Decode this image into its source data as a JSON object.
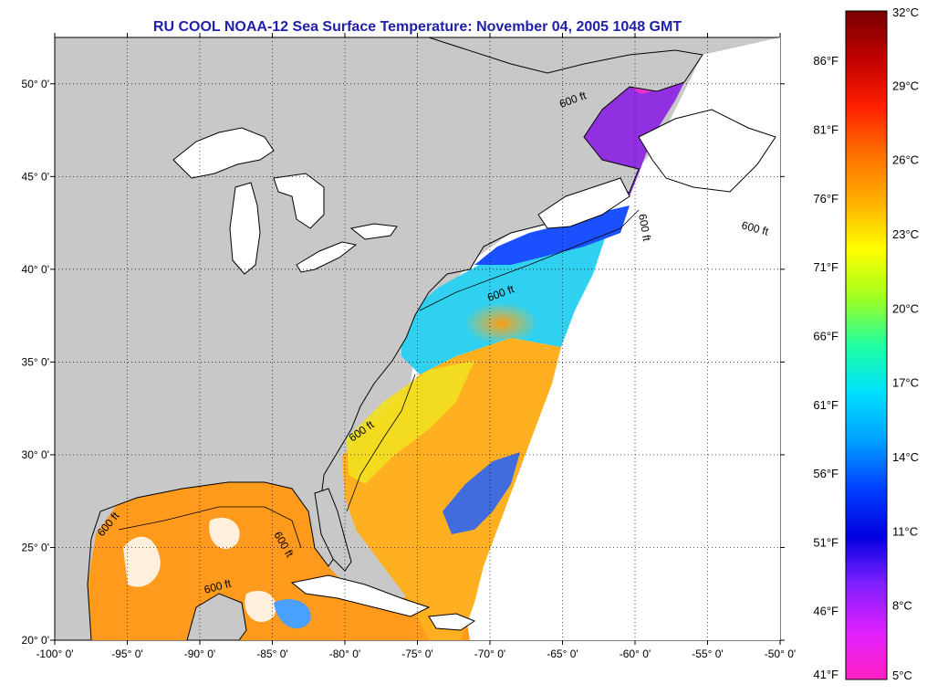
{
  "title": "RU COOL  NOAA-12  Sea Surface Temperature:  November 04, 2005 1048 GMT",
  "map": {
    "lon_min": -100,
    "lon_max": -50,
    "lat_min": 20,
    "lat_max": 52.5,
    "lon_ticks": [
      {
        "value": -100,
        "label": "-100° 0'"
      },
      {
        "value": -95,
        "label": "-95° 0'"
      },
      {
        "value": -90,
        "label": "-90° 0'"
      },
      {
        "value": -85,
        "label": "-85° 0'"
      },
      {
        "value": -80,
        "label": "-80° 0'"
      },
      {
        "value": -75,
        "label": "-75° 0'"
      },
      {
        "value": -70,
        "label": "-70° 0'"
      },
      {
        "value": -65,
        "label": "-65° 0'"
      },
      {
        "value": -60,
        "label": "-60° 0'"
      },
      {
        "value": -55,
        "label": "-55° 0'"
      },
      {
        "value": -50,
        "label": "-50° 0'"
      }
    ],
    "lat_ticks": [
      {
        "value": 20,
        "label": "20° 0'"
      },
      {
        "value": 25,
        "label": "25° 0'"
      },
      {
        "value": 30,
        "label": "30° 0'"
      },
      {
        "value": 35,
        "label": "35° 0'"
      },
      {
        "value": 40,
        "label": "40° 0'"
      },
      {
        "value": 45,
        "label": "45° 0'"
      },
      {
        "value": 50,
        "label": "50° 0'"
      }
    ],
    "grid": "dotted",
    "contour_label": "600 ft",
    "colors": {
      "land": "#c8c8c8",
      "ocean_nodata": "#ffffff",
      "coastline": "#000000"
    }
  },
  "colorbar": {
    "celsius": [
      {
        "value": 32,
        "label": "32°C"
      },
      {
        "value": 29,
        "label": "29°C"
      },
      {
        "value": 26,
        "label": "26°C"
      },
      {
        "value": 23,
        "label": "23°C"
      },
      {
        "value": 20,
        "label": "20°C"
      },
      {
        "value": 17,
        "label": "17°C"
      },
      {
        "value": 14,
        "label": "14°C"
      },
      {
        "value": 11,
        "label": "11°C"
      },
      {
        "value": 8,
        "label": "8°C"
      },
      {
        "value": 5,
        "label": "5°C"
      }
    ],
    "fahrenheit": [
      {
        "value": 86,
        "label": "86°F"
      },
      {
        "value": 81,
        "label": "81°F"
      },
      {
        "value": 76,
        "label": "76°F"
      },
      {
        "value": 71,
        "label": "71°F"
      },
      {
        "value": 66,
        "label": "66°F"
      },
      {
        "value": 61,
        "label": "61°F"
      },
      {
        "value": 56,
        "label": "56°F"
      },
      {
        "value": 51,
        "label": "51°F"
      },
      {
        "value": 46,
        "label": "46°F"
      },
      {
        "value": 41,
        "label": "41°F"
      }
    ],
    "stops": [
      "#7a0000",
      "#c00000",
      "#ff2000",
      "#ff7000",
      "#ffb000",
      "#ffff00",
      "#a0ff20",
      "#20ffa0",
      "#00e0ff",
      "#00a0ff",
      "#0040ff",
      "#0000e0",
      "#8020ff",
      "#e020ff",
      "#ff20c0"
    ]
  }
}
